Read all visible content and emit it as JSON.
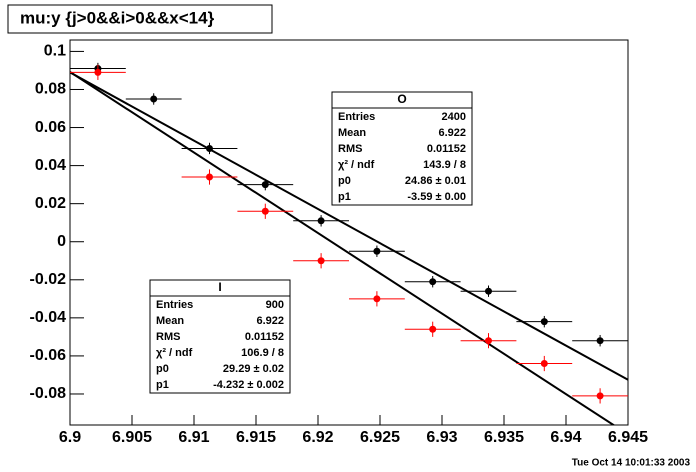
{
  "chart_data": {
    "type": "scatter",
    "title": "mu:y {j>0&&i>0&&x<14}",
    "timestamp": "Tue Oct 14 10:01:33 2003",
    "x": [
      6.90225,
      6.90675,
      6.91125,
      6.91575,
      6.92025,
      6.92475,
      6.92925,
      6.93375,
      6.93825,
      6.94275
    ],
    "xerr": 0.00225,
    "series": [
      {
        "name": "O",
        "color": "#000000",
        "yerr": 0.003,
        "fit_p0": 24.86,
        "fit_p1": -3.59,
        "values": [
          0.091,
          0.075,
          0.049,
          0.03,
          0.011,
          -0.005,
          -0.021,
          -0.026,
          -0.042,
          -0.052
        ]
      },
      {
        "name": "I",
        "color": "#ff0000",
        "yerr": 0.004,
        "fit_p0": 29.29,
        "fit_p1": -4.232,
        "values": [
          0.089,
          null,
          0.034,
          0.016,
          -0.01,
          -0.03,
          -0.046,
          -0.052,
          -0.064,
          -0.081
        ]
      }
    ],
    "xlim": [
      6.9,
      6.945
    ],
    "ylim": [
      -0.0963,
      0.106
    ],
    "xticks": [
      6.9,
      6.905,
      6.91,
      6.915,
      6.92,
      6.925,
      6.93,
      6.935,
      6.94,
      6.945
    ],
    "yticks": [
      -0.08,
      -0.06,
      -0.04,
      -0.02,
      0,
      0.02,
      0.04,
      0.06,
      0.08,
      0.1
    ],
    "stats": [
      {
        "title": "O",
        "rows": [
          [
            "Entries",
            "2400"
          ],
          [
            "Mean",
            "6.922"
          ],
          [
            "RMS",
            "0.01152"
          ],
          [
            "χ² / ndf",
            "143.9 / 8"
          ],
          [
            "p0",
            "24.86 ± 0.01"
          ],
          [
            "p1",
            "-3.59 ± 0.00"
          ]
        ]
      },
      {
        "title": "I",
        "rows": [
          [
            "Entries",
            "900"
          ],
          [
            "Mean",
            "6.922"
          ],
          [
            "RMS",
            "0.01152"
          ],
          [
            "χ² / ndf",
            "106.9 / 8"
          ],
          [
            "p0",
            "29.29 ± 0.02"
          ],
          [
            "p1",
            "-4.232 ± 0.002"
          ]
        ]
      }
    ]
  }
}
